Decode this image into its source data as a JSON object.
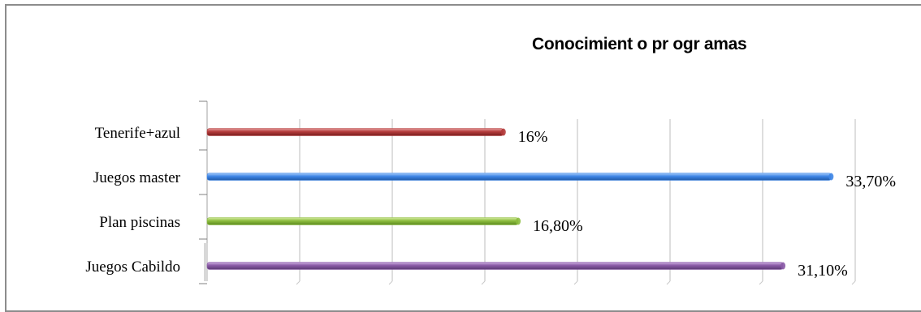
{
  "chart_data": {
    "type": "bar",
    "orientation": "horizontal",
    "title": "Conocimient o pr ogr amas",
    "categories": [
      "Tenerife+azul",
      "Juegos master",
      "Plan piscinas",
      "Juegos Cabildo"
    ],
    "values": [
      16,
      33.7,
      16.8,
      31.1
    ],
    "value_labels": [
      "16%",
      "33,70%",
      "16,80%",
      "31,10%"
    ],
    "colors": [
      "#b33a3a",
      "#3f86e6",
      "#8cbd3e",
      "#8a5aa6"
    ],
    "xlim": [
      0,
      35
    ],
    "grid": true,
    "legend": "none",
    "xlabel": "",
    "ylabel": ""
  }
}
